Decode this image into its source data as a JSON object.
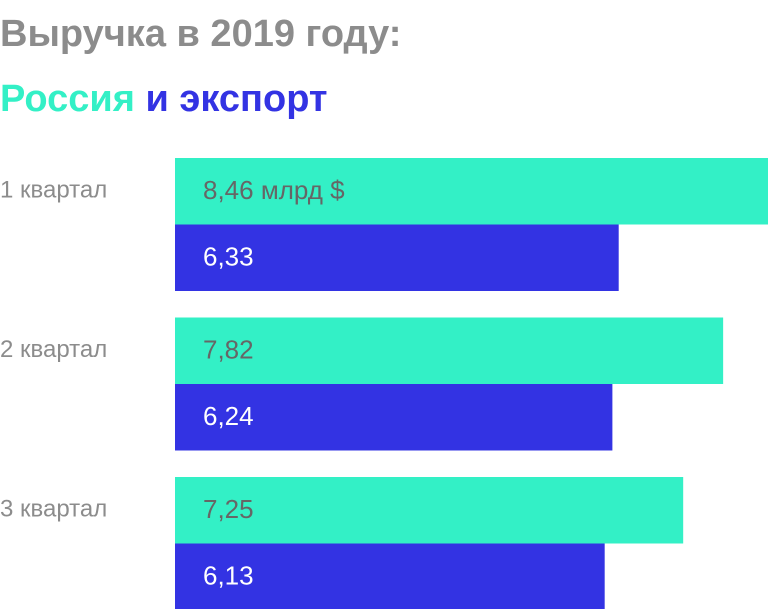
{
  "chart_data": {
    "type": "bar",
    "orientation": "horizontal",
    "title": "Выручка в 2019 году:",
    "subtitle_joiner": "и",
    "categories": [
      "1 квартал",
      "2 квартал",
      "3 квартал"
    ],
    "series": [
      {
        "name": "Россия",
        "color": "#33f0c6",
        "label_color": "#666666",
        "values": [
          8.46,
          7.82,
          7.25
        ],
        "value_labels": [
          "8,46 млрд $",
          "7,82",
          "7,25"
        ]
      },
      {
        "name": "экспорт",
        "color": "#3333e3",
        "label_color": "#ffffff",
        "values": [
          6.33,
          6.24,
          6.13
        ],
        "value_labels": [
          "6,33",
          "6,24",
          "6,13"
        ]
      }
    ]
  }
}
